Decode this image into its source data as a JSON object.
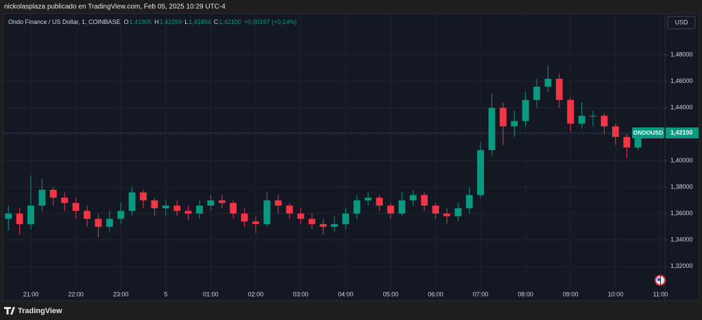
{
  "header": {
    "title": "nickolasplaza publicado en TradingView.com, Feb 05, 2025 10:29 UTC-4"
  },
  "footer": {
    "brand": "TradingView"
  },
  "chart_data": {
    "type": "candlestick",
    "title": "Ondo Finance / US Dollar, 1, COINBASE",
    "legend_ohlc": [
      {
        "key": "O",
        "value": 1.41905,
        "label": "1,41905"
      },
      {
        "key": "H",
        "value": 1.42269,
        "label": "1,42269"
      },
      {
        "key": "L",
        "value": 1.41894,
        "label": "1,41894"
      },
      {
        "key": "C",
        "value": 1.421,
        "label": "1,42100"
      }
    ],
    "change": "+0,00197 (+0,14%)",
    "currency": "USD",
    "symbol": "ONDOUSD",
    "last_price": {
      "value": 1.421,
      "label": "1,42100"
    },
    "up_color": "#089981",
    "down_color": "#f23645",
    "grid": true,
    "x": [
      20.5,
      20.75,
      21,
      21.25,
      21.5,
      21.75,
      22,
      22.25,
      22.5,
      22.75,
      23,
      23.25,
      23.5,
      23.75,
      24,
      24.25,
      24.5,
      24.75,
      25,
      25.25,
      25.5,
      25.75,
      26,
      26.25,
      26.5,
      26.75,
      27,
      27.25,
      27.5,
      27.75,
      28,
      28.25,
      28.5,
      28.75,
      29,
      29.25,
      29.5,
      29.75,
      30,
      30.25,
      30.5,
      30.75,
      31,
      31.25,
      31.5,
      31.75,
      32,
      32.25,
      32.5,
      32.75,
      33,
      33.25,
      33.5,
      33.75,
      34,
      34.25,
      34.5
    ],
    "open": [
      1.356,
      1.36,
      1.352,
      1.366,
      1.378,
      1.372,
      1.368,
      1.362,
      1.356,
      1.35,
      1.356,
      1.362,
      1.376,
      1.37,
      1.364,
      1.366,
      1.362,
      1.36,
      1.366,
      1.37,
      1.368,
      1.36,
      1.354,
      1.352,
      1.37,
      1.366,
      1.36,
      1.356,
      1.352,
      1.35,
      1.352,
      1.36,
      1.37,
      1.372,
      1.366,
      1.36,
      1.37,
      1.374,
      1.366,
      1.36,
      1.358,
      1.364,
      1.374,
      1.408,
      1.44,
      1.426,
      1.43,
      1.446,
      1.456,
      1.462,
      1.446,
      1.428,
      1.434,
      1.434,
      1.426,
      1.418,
      1.41
    ],
    "high": [
      1.366,
      1.364,
      1.389,
      1.386,
      1.38,
      1.376,
      1.372,
      1.366,
      1.36,
      1.362,
      1.368,
      1.38,
      1.378,
      1.372,
      1.37,
      1.37,
      1.366,
      1.37,
      1.374,
      1.374,
      1.37,
      1.364,
      1.358,
      1.376,
      1.374,
      1.368,
      1.364,
      1.36,
      1.356,
      1.358,
      1.364,
      1.374,
      1.376,
      1.374,
      1.368,
      1.376,
      1.378,
      1.376,
      1.368,
      1.364,
      1.368,
      1.38,
      1.414,
      1.451,
      1.444,
      1.438,
      1.452,
      1.462,
      1.472,
      1.466,
      1.448,
      1.444,
      1.438,
      1.436,
      1.428,
      1.42,
      1.423
    ],
    "low": [
      1.347,
      1.344,
      1.348,
      1.362,
      1.366,
      1.362,
      1.356,
      1.35,
      1.342,
      1.346,
      1.352,
      1.358,
      1.364,
      1.358,
      1.358,
      1.358,
      1.355,
      1.356,
      1.362,
      1.364,
      1.356,
      1.35,
      1.345,
      1.35,
      1.36,
      1.356,
      1.352,
      1.348,
      1.344,
      1.346,
      1.348,
      1.356,
      1.366,
      1.362,
      1.356,
      1.358,
      1.366,
      1.362,
      1.356,
      1.352,
      1.354,
      1.36,
      1.372,
      1.404,
      1.412,
      1.418,
      1.426,
      1.44,
      1.452,
      1.44,
      1.422,
      1.424,
      1.426,
      1.42,
      1.412,
      1.402,
      1.408
    ],
    "close": [
      1.36,
      1.352,
      1.366,
      1.378,
      1.372,
      1.368,
      1.362,
      1.356,
      1.35,
      1.356,
      1.362,
      1.376,
      1.37,
      1.364,
      1.366,
      1.362,
      1.36,
      1.366,
      1.37,
      1.368,
      1.36,
      1.354,
      1.352,
      1.37,
      1.366,
      1.36,
      1.356,
      1.352,
      1.35,
      1.352,
      1.36,
      1.37,
      1.372,
      1.366,
      1.36,
      1.37,
      1.374,
      1.366,
      1.36,
      1.358,
      1.364,
      1.374,
      1.408,
      1.44,
      1.426,
      1.43,
      1.446,
      1.456,
      1.462,
      1.446,
      1.428,
      1.434,
      1.434,
      1.426,
      1.418,
      1.41,
      1.421
    ],
    "xlim": [
      20.39,
      35.1
    ],
    "xticks": [
      {
        "value": 21,
        "label": "21:00"
      },
      {
        "value": 22,
        "label": "22:00"
      },
      {
        "value": 23,
        "label": "23:00"
      },
      {
        "value": 24,
        "label": "5"
      },
      {
        "value": 25,
        "label": "01:00"
      },
      {
        "value": 26,
        "label": "02:00"
      },
      {
        "value": 27,
        "label": "03:00"
      },
      {
        "value": 28,
        "label": "04:00"
      },
      {
        "value": 29,
        "label": "05:00"
      },
      {
        "value": 30,
        "label": "06:00"
      },
      {
        "value": 31,
        "label": "07:00"
      },
      {
        "value": 32,
        "label": "08:00"
      },
      {
        "value": 33,
        "label": "09:00"
      },
      {
        "value": 34,
        "label": "10:00"
      },
      {
        "value": 35,
        "label": "11:00"
      }
    ],
    "ylim": [
      1.2945,
      1.5107
    ],
    "yticks": [
      {
        "value": 1.32,
        "label": "1,32000"
      },
      {
        "value": 1.34,
        "label": "1,34000"
      },
      {
        "value": 1.36,
        "label": "1,36000"
      },
      {
        "value": 1.38,
        "label": "1,38000"
      },
      {
        "value": 1.4,
        "label": "1,40000"
      },
      {
        "value": 1.42,
        "label": "1,42000"
      },
      {
        "value": 1.44,
        "label": "1,44000"
      },
      {
        "value": 1.46,
        "label": "1,46000"
      },
      {
        "value": 1.48,
        "label": "1,48000"
      }
    ]
  }
}
